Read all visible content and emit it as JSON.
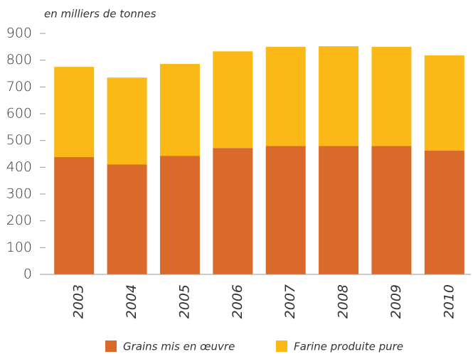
{
  "chart_data": {
    "type": "stacked_bar",
    "y_label": "en milliers de tonnes",
    "categories": [
      "2003",
      "2004",
      "2005",
      "2006",
      "2007",
      "2008",
      "2009",
      "2010"
    ],
    "series": [
      {
        "name": "Grains mis en œuvre",
        "color": "#d96a2b",
        "values": [
          438,
          411,
          443,
          472,
          480,
          480,
          480,
          462
        ]
      },
      {
        "name": "Farine produite pure",
        "color": "#fbb918",
        "values": [
          337,
          324,
          343,
          361,
          370,
          372,
          370,
          356
        ]
      }
    ],
    "ylim": [
      0,
      900
    ],
    "yticks": [
      0,
      100,
      200,
      300,
      400,
      500,
      600,
      700,
      800,
      900
    ],
    "legend": "bottom"
  }
}
